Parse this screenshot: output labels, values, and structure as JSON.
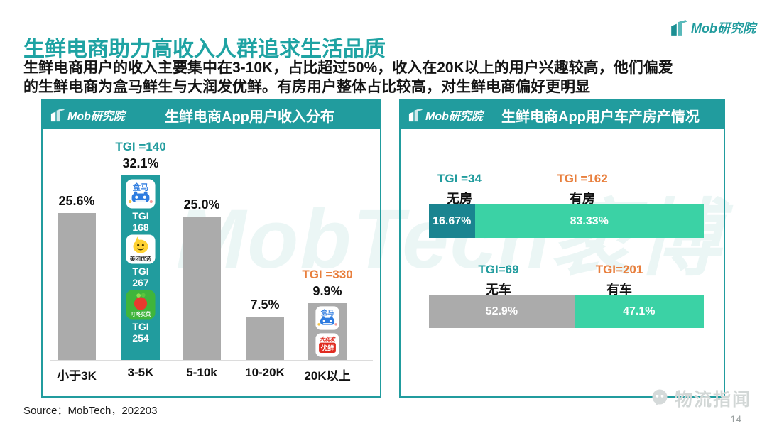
{
  "header": {
    "title": "生鲜电商助力高收入人群追求生活品质",
    "brand": "Mob研究院"
  },
  "intro": {
    "line1": "生鲜电商用户的收入主要集中在3-10K，占比超过50%，收入在20K以上的用户兴趣较高，他们偏爱",
    "line2": "的生鲜电商为盒马鲜生与大润发优鲜。有房用户整体占比较高，对生鲜电商偏好更明显"
  },
  "watermark": {
    "center": "MobTech袤博",
    "outlet": "物流指闻"
  },
  "footer": {
    "source": "Source：MobTech，202203",
    "page_number": "14"
  },
  "colors": {
    "teal": "#219c9e",
    "mint": "#3bd2a5",
    "dark_teal": "#1a8490",
    "gray_bar": "#ababab",
    "orange": "#e87f3d",
    "title_teal": "#1fa3a3"
  },
  "app_icons": {
    "hema": {
      "label": "盒马"
    },
    "meituan": {
      "label": "美团优选"
    },
    "dingdong": {
      "label": "叮咚买菜"
    },
    "rtmart": {
      "banner": "大润发",
      "label": "优鲜"
    }
  },
  "chart_data": [
    {
      "type": "bar",
      "title": "生鲜电商App用户收入分布",
      "brand": "Mob研究院",
      "categories": [
        "小于3K",
        "3-5K",
        "5-10k",
        "10-20K",
        "20K以上"
      ],
      "values": [
        25.6,
        32.1,
        25.0,
        7.5,
        9.9
      ],
      "value_labels": [
        "25.6%",
        "32.1%",
        "25.0%",
        "7.5%",
        "9.9%"
      ],
      "bar_colors": [
        "gray_bar",
        "teal",
        "gray_bar",
        "gray_bar",
        "gray_bar"
      ],
      "ylim": [
        0,
        35
      ],
      "grid": false,
      "legend": false,
      "annotations": [
        {
          "category": "3-5K",
          "tgi_label": "TGI =140",
          "color_key": "teal"
        },
        {
          "category": "20K以上",
          "tgi_label": "TGI =330",
          "color_key": "orange"
        }
      ],
      "favorite_apps_3_5k": [
        {
          "app": "盒马",
          "tgi_word": "TGI",
          "tgi_value": "168"
        },
        {
          "app": "美团优选",
          "tgi_word": "TGI",
          "tgi_value": "267"
        },
        {
          "app": "叮咚买菜",
          "tgi_word": "TGI",
          "tgi_value": "254"
        }
      ],
      "favorite_apps_20k": [
        {
          "app": "盒马"
        },
        {
          "app": "大润发优鲜"
        }
      ]
    },
    {
      "type": "bar",
      "subtype": "horizontal-stacked",
      "title": "生鲜电商App用户车产房产情况",
      "brand": "Mob研究院",
      "rows": [
        {
          "segments": [
            {
              "category": "无房",
              "tgi_label": "TGI =34",
              "tgi_color": "teal",
              "value": 16.67,
              "label": "16.67%",
              "color_key": "dark_teal"
            },
            {
              "category": "有房",
              "tgi_label": "TGI =162",
              "tgi_color": "orange",
              "value": 83.33,
              "label": "83.33%",
              "color_key": "mint"
            }
          ]
        },
        {
          "segments": [
            {
              "category": "无车",
              "tgi_label": "TGI=69",
              "tgi_color": "teal",
              "value": 52.9,
              "label": "52.9%",
              "color_key": "gray_bar"
            },
            {
              "category": "有车",
              "tgi_label": "TGI=201",
              "tgi_color": "orange",
              "value": 47.1,
              "label": "47.1%",
              "color_key": "mint"
            }
          ]
        }
      ]
    }
  ]
}
